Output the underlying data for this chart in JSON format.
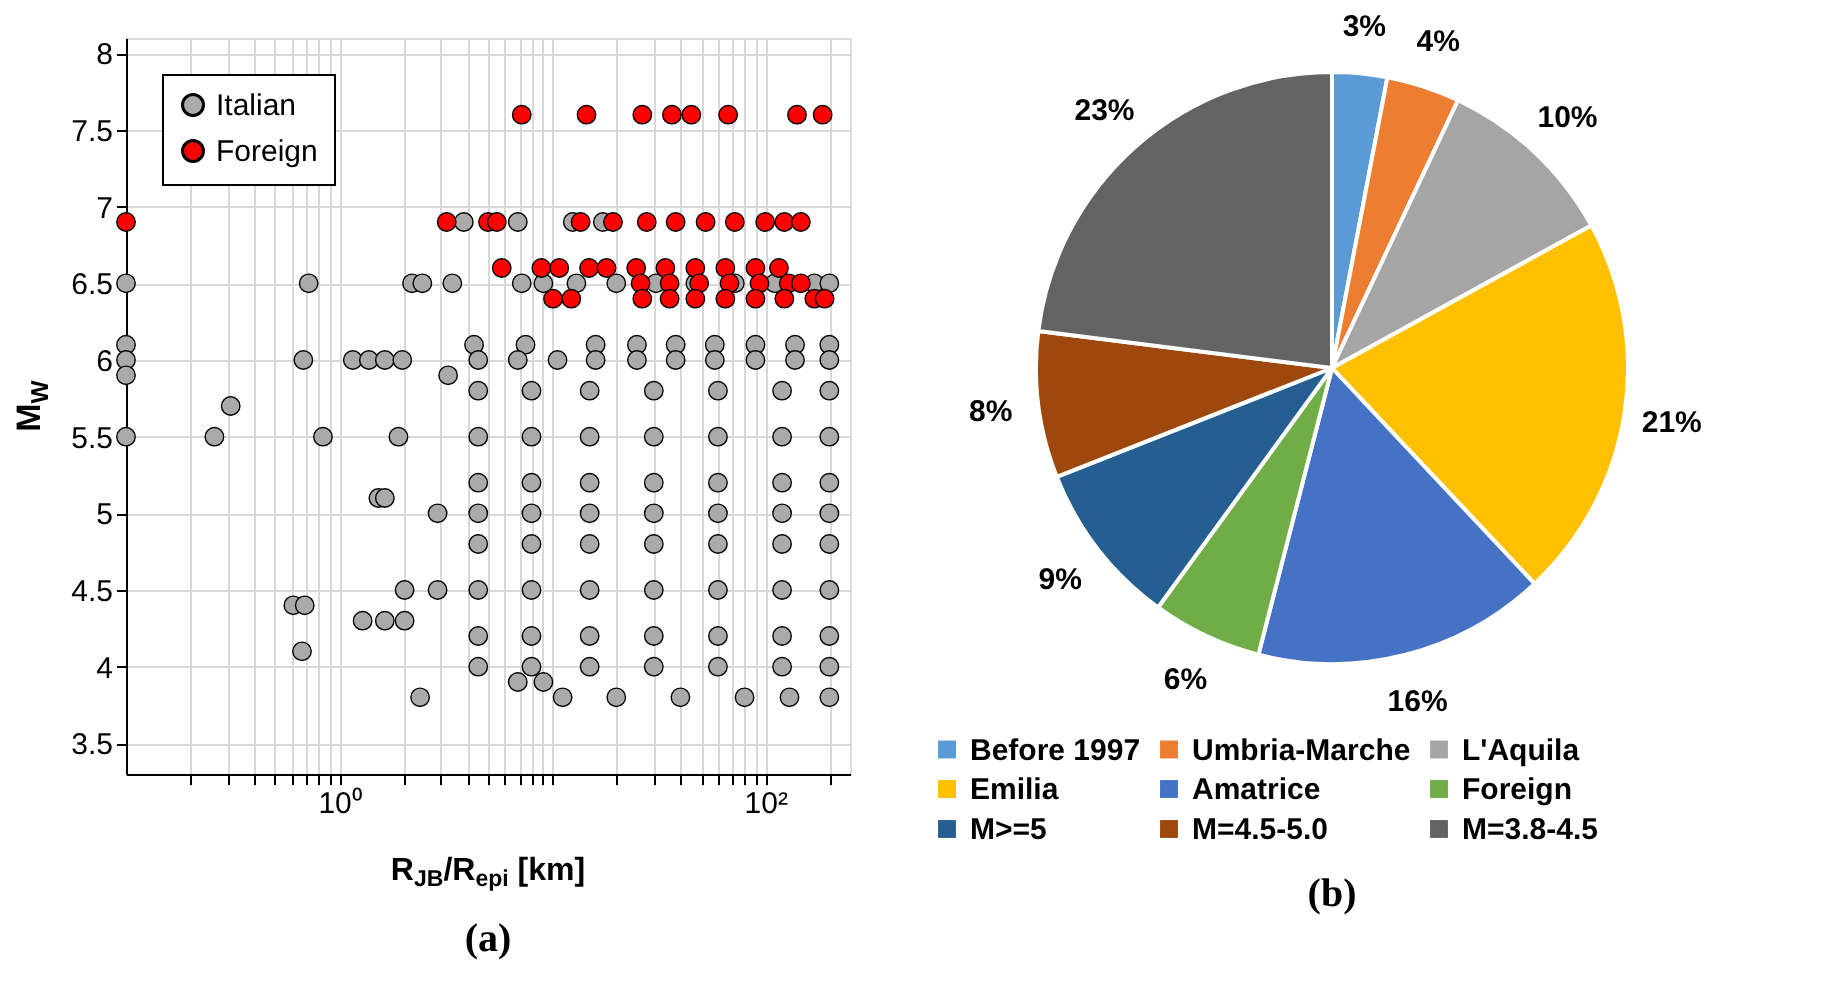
{
  "chart_data": [
    {
      "type": "scatter",
      "title": "(a)",
      "xlabel": "R$_{JB}$/R$_{epi}$ [km]",
      "ylabel": "M$_{W}$",
      "log": "x",
      "xlim": [
        0.1,
        250
      ],
      "ylim": [
        3.3,
        8.1
      ],
      "xticks": [
        {
          "value": 0.2,
          "label": null
        },
        {
          "value": 0.3,
          "label": null
        },
        {
          "value": 0.4,
          "label": null
        },
        {
          "value": 0.5,
          "label": null
        },
        {
          "value": 0.6,
          "label": null
        },
        {
          "value": 0.7,
          "label": null
        },
        {
          "value": 0.8,
          "label": null
        },
        {
          "value": 0.9,
          "label": null
        },
        {
          "value": 1,
          "label": "10⁰"
        },
        {
          "value": 2,
          "label": null
        },
        {
          "value": 3,
          "label": null
        },
        {
          "value": 4,
          "label": null
        },
        {
          "value": 5,
          "label": null
        },
        {
          "value": 6,
          "label": null
        },
        {
          "value": 7,
          "label": null
        },
        {
          "value": 8,
          "label": null
        },
        {
          "value": 9,
          "label": null
        },
        {
          "value": 10,
          "label": null
        },
        {
          "value": 20,
          "label": null
        },
        {
          "value": 30,
          "label": null
        },
        {
          "value": 40,
          "label": null
        },
        {
          "value": 50,
          "label": null
        },
        {
          "value": 60,
          "label": null
        },
        {
          "value": 70,
          "label": null
        },
        {
          "value": 80,
          "label": null
        },
        {
          "value": 90,
          "label": null
        },
        {
          "value": 100,
          "label": "10²"
        },
        {
          "value": 200,
          "label": null
        }
      ],
      "yticks": [
        3.5,
        4,
        4.5,
        5,
        5.5,
        6,
        6.5,
        7,
        7.5,
        8
      ],
      "grid": true,
      "legend": "top left",
      "marker": "circle",
      "series": [
        {
          "name": "Italian",
          "color": "#aaaaaa",
          "x": [
            0.1,
            0.1,
            0.1,
            0.1,
            0.1,
            0.72,
            0.68,
            1.16,
            1.38,
            1.64,
            1.98,
            0.31,
            0.26,
            0.84,
            1.9,
            2.2,
            2.46,
            3.4,
            7.2,
            3.85,
            6.9,
            12.5,
            17.3,
            4.3,
            7.5,
            1.53,
            1.64,
            2.9,
            0.61,
            0.69,
            0.67,
            1.29,
            1.64,
            2.03,
            2.03,
            2.9,
            2.4,
            6.9,
            9.1,
            3.25,
            9.1,
            13,
            20,
            30.7,
            47,
            72,
            111,
            170,
            200,
            16,
            25,
            38,
            58,
            90,
            138,
            200,
            4.5,
            6.9,
            10.6,
            16,
            25,
            38,
            58,
            90,
            138,
            200,
            4.5,
            8,
            15,
            30,
            60,
            120,
            200,
            4.5,
            8,
            15,
            30,
            60,
            120,
            200,
            4.5,
            8,
            15,
            30,
            60,
            120,
            200,
            4.5,
            8,
            15,
            30,
            60,
            120,
            200,
            4.5,
            8,
            15,
            30,
            60,
            120,
            200,
            4.5,
            8,
            15,
            30,
            60,
            120,
            200,
            4.5,
            8,
            15,
            30,
            60,
            120,
            200,
            4.5,
            8,
            15,
            30,
            60,
            120,
            200,
            11.2,
            20,
            40,
            80,
            130,
            200
          ],
          "values": [
            6.5,
            6.1,
            6.0,
            5.9,
            5.5,
            6.5,
            6.0,
            6.0,
            6.0,
            6.0,
            6.0,
            5.7,
            5.5,
            5.5,
            5.5,
            6.5,
            6.5,
            6.5,
            6.5,
            6.9,
            6.9,
            6.9,
            6.9,
            6.1,
            6.1,
            5.1,
            5.1,
            5.0,
            4.4,
            4.4,
            4.1,
            4.3,
            4.3,
            4.3,
            4.5,
            4.5,
            3.8,
            3.9,
            3.9,
            5.9,
            6.5,
            6.5,
            6.5,
            6.5,
            6.5,
            6.5,
            6.5,
            6.5,
            6.5,
            6.1,
            6.1,
            6.1,
            6.1,
            6.1,
            6.1,
            6.1,
            6.0,
            6.0,
            6.0,
            6.0,
            6.0,
            6.0,
            6.0,
            6.0,
            6.0,
            6.0,
            5.8,
            5.8,
            5.8,
            5.8,
            5.8,
            5.8,
            5.8,
            5.5,
            5.5,
            5.5,
            5.5,
            5.5,
            5.5,
            5.5,
            5.2,
            5.2,
            5.2,
            5.2,
            5.2,
            5.2,
            5.2,
            5.0,
            5.0,
            5.0,
            5.0,
            5.0,
            5.0,
            5.0,
            4.8,
            4.8,
            4.8,
            4.8,
            4.8,
            4.8,
            4.8,
            4.5,
            4.5,
            4.5,
            4.5,
            4.5,
            4.5,
            4.5,
            4.2,
            4.2,
            4.2,
            4.2,
            4.2,
            4.2,
            4.2,
            4.0,
            4.0,
            4.0,
            4.0,
            4.0,
            4.0,
            4.0,
            3.8,
            3.8,
            3.8,
            3.8,
            3.8,
            3.8
          ]
        },
        {
          "name": "Foreign",
          "color": "#ff0000",
          "x": [
            7.2,
            14.5,
            26.5,
            36.5,
            45,
            67,
            141,
            186,
            0.1,
            3.2,
            5.0,
            5.5,
            13.6,
            19.3,
            27.8,
            38,
            52.5,
            72,
            100,
            123,
            147,
            5.8,
            8.9,
            10.8,
            14.9,
            18,
            24.8,
            34,
            47,
            65,
            90,
            116,
            26,
            35.6,
            49,
            68,
            94,
            129,
            147,
            10.1,
            12.3,
            26.5,
            35.6,
            47,
            65,
            90,
            123,
            170,
            190
          ],
          "values": [
            7.6,
            7.6,
            7.6,
            7.6,
            7.6,
            7.6,
            7.6,
            7.6,
            6.9,
            6.9,
            6.9,
            6.9,
            6.9,
            6.9,
            6.9,
            6.9,
            6.9,
            6.9,
            6.9,
            6.9,
            6.9,
            6.6,
            6.6,
            6.6,
            6.6,
            6.6,
            6.6,
            6.6,
            6.6,
            6.6,
            6.6,
            6.6,
            6.5,
            6.5,
            6.5,
            6.5,
            6.5,
            6.5,
            6.5,
            6.4,
            6.4,
            6.4,
            6.4,
            6.4,
            6.4,
            6.4,
            6.4,
            6.4,
            6.4
          ]
        }
      ]
    },
    {
      "type": "pie",
      "title": "(b)",
      "legend": "bottom",
      "categories": [
        "Before 1997",
        "Umbria-Marche",
        "L'Aquila",
        "Emilia",
        "Amatrice",
        "Foreign",
        "M>=5",
        "M=4.5-5.0",
        "M=3.8-4.5"
      ],
      "values": [
        3,
        4,
        10,
        21,
        16,
        6,
        9,
        8,
        23
      ],
      "value_labels": [
        "3%",
        "4%",
        "10%",
        "21%",
        "16%",
        "6%",
        "9%",
        "8%",
        "23%"
      ],
      "colors": [
        "#5b9bd5",
        "#ed7d31",
        "#a5a5a5",
        "#ffc000",
        "#4472c4",
        "#70ad47",
        "#255e91",
        "#9e480e",
        "#636363"
      ]
    }
  ]
}
